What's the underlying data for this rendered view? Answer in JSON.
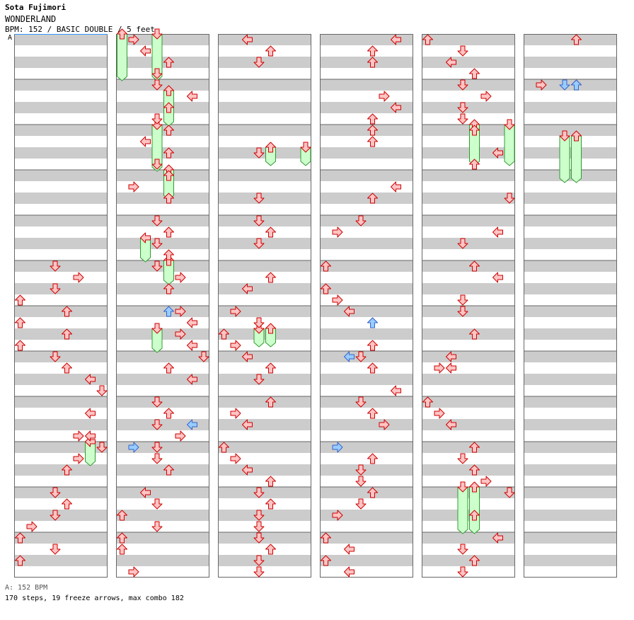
{
  "header": {
    "artist": "Sota Fujimori",
    "title": "WONDERLAND",
    "info": "BPM: 152 / BASIC DOUBLE / 5 feet"
  },
  "bpm_marker": {
    "label": "A"
  },
  "footer": {
    "bpm": "A: 152 BPM",
    "stats": "170 steps, 19 freeze arrows, max combo 182"
  },
  "colors": {
    "stripe_dark": "#cccccc",
    "stripe_light": "#ffffff",
    "tap": "#ffc4c4",
    "tap_stroke": "#cc0000",
    "tap_alt": "#99ccff",
    "tap_alt_stroke": "#3366cc",
    "freeze": "#ccffcc",
    "freeze_stroke": "#339933"
  },
  "chart_data": {
    "type": "step-chart",
    "bpm": 152,
    "difficulty": "BASIC DOUBLE",
    "feet": 5,
    "lanes": [
      "L",
      "D",
      "U",
      "R",
      "L",
      "D",
      "U",
      "R"
    ],
    "measures_per_column": 12,
    "columns": 6,
    "total_steps": 170,
    "freeze_arrows": 19,
    "max_combo": 182,
    "notes": [
      {
        "m": 5,
        "b": 0,
        "l": 3
      },
      {
        "m": 5,
        "b": 1,
        "l": 5
      },
      {
        "m": 5,
        "b": 2,
        "l": 3
      },
      {
        "m": 5,
        "b": 3,
        "l": 0
      },
      {
        "m": 6,
        "b": 0,
        "l": 4
      },
      {
        "m": 6,
        "b": 1,
        "l": 0
      },
      {
        "m": 6,
        "b": 2,
        "l": 4
      },
      {
        "m": 6,
        "b": 3,
        "l": 0
      },
      {
        "m": 7,
        "b": 0,
        "l": 3
      },
      {
        "m": 7,
        "b": 1,
        "l": 4
      },
      {
        "m": 7,
        "b": 2,
        "l": 6
      },
      {
        "m": 7,
        "b": 3,
        "l": 7
      },
      {
        "m": 8,
        "b": 1,
        "l": 6
      },
      {
        "m": 8,
        "b": 3,
        "l": 5
      },
      {
        "m": 8,
        "b": 3,
        "l": 6
      },
      {
        "m": 9,
        "b": 0,
        "l": 7
      },
      {
        "m": 9,
        "b": 1,
        "l": 5
      },
      {
        "m": 9,
        "b": 2,
        "l": 4
      },
      {
        "m": 10,
        "b": 0,
        "l": 3
      },
      {
        "m": 10,
        "b": 1,
        "l": 4
      },
      {
        "m": 10,
        "b": 2,
        "l": 3
      },
      {
        "m": 10,
        "b": 3,
        "l": 1
      },
      {
        "m": 11,
        "b": 0,
        "l": 0
      },
      {
        "m": 11,
        "b": 1,
        "l": 3
      },
      {
        "m": 11,
        "b": 2,
        "l": 0
      },
      {
        "m": 12,
        "b": 0,
        "l": 1
      },
      {
        "m": 12,
        "b": 1,
        "l": 2
      },
      {
        "m": 12,
        "b": 2,
        "l": 4
      },
      {
        "m": 12,
        "b": 3,
        "l": 3
      },
      {
        "m": 13,
        "b": 0,
        "l": 3
      },
      {
        "m": 13,
        "b": 1,
        "l": 6
      },
      {
        "m": 13,
        "b": 2,
        "l": 4
      },
      {
        "m": 13,
        "b": 3,
        "l": 3
      },
      {
        "m": 14,
        "b": 0,
        "l": 4
      },
      {
        "m": 14,
        "b": 1,
        "l": 2
      },
      {
        "m": 14,
        "b": 2,
        "l": 4
      },
      {
        "m": 14,
        "b": 3,
        "l": 3
      },
      {
        "m": 15,
        "b": 0,
        "l": 4
      },
      {
        "m": 15,
        "b": 1,
        "l": 1
      },
      {
        "m": 15,
        "b": 2,
        "l": 4
      },
      {
        "m": 16,
        "b": 0,
        "l": 3
      },
      {
        "m": 16,
        "b": 1,
        "l": 4
      },
      {
        "m": 16,
        "b": 2,
        "l": 3
      },
      {
        "m": 16,
        "b": 3,
        "l": 4
      },
      {
        "m": 17,
        "b": 0,
        "l": 3
      },
      {
        "m": 17,
        "b": 1,
        "l": 5
      },
      {
        "m": 17,
        "b": 2,
        "l": 4
      },
      {
        "m": 18,
        "b": 0,
        "l": 5
      },
      {
        "m": 18,
        "b": 1,
        "l": 6
      },
      {
        "m": 18,
        "b": 2,
        "l": 5
      },
      {
        "m": 18,
        "b": 3,
        "l": 6
      },
      {
        "m": 19,
        "b": 0,
        "l": 7
      },
      {
        "m": 19,
        "b": 1,
        "l": 4
      },
      {
        "m": 19,
        "b": 2,
        "l": 6
      },
      {
        "m": 20,
        "b": 0,
        "l": 3
      },
      {
        "m": 20,
        "b": 1,
        "l": 4
      },
      {
        "m": 20,
        "b": 2,
        "l": 3
      },
      {
        "m": 20,
        "b": 3,
        "l": 5
      },
      {
        "m": 21,
        "b": 0,
        "l": 3
      },
      {
        "m": 21,
        "b": 1,
        "l": 3
      },
      {
        "m": 21,
        "b": 2,
        "l": 4
      },
      {
        "m": 22,
        "b": 0,
        "l": 2
      },
      {
        "m": 22,
        "b": 1,
        "l": 3
      },
      {
        "m": 22,
        "b": 2,
        "l": 0
      },
      {
        "m": 22,
        "b": 3,
        "l": 3
      },
      {
        "m": 23,
        "b": 0,
        "l": 0
      },
      {
        "m": 23,
        "b": 1,
        "l": 0
      },
      {
        "m": 23,
        "b": 3,
        "l": 1
      },
      {
        "m": 24,
        "b": 0,
        "l": 2
      },
      {
        "m": 24,
        "b": 1,
        "l": 4
      },
      {
        "m": 24,
        "b": 2,
        "l": 3
      },
      {
        "m": 26,
        "b": 2,
        "l": 3
      },
      {
        "m": 27,
        "b": 2,
        "l": 3
      },
      {
        "m": 28,
        "b": 0,
        "l": 3
      },
      {
        "m": 28,
        "b": 1,
        "l": 4
      },
      {
        "m": 28,
        "b": 2,
        "l": 3
      },
      {
        "m": 29,
        "b": 1,
        "l": 4
      },
      {
        "m": 29,
        "b": 2,
        "l": 2
      },
      {
        "m": 30,
        "b": 0,
        "l": 1
      },
      {
        "m": 30,
        "b": 1,
        "l": 3
      },
      {
        "m": 30,
        "b": 2,
        "l": 0
      },
      {
        "m": 30,
        "b": 3,
        "l": 1
      },
      {
        "m": 31,
        "b": 0,
        "l": 2
      },
      {
        "m": 31,
        "b": 1,
        "l": 4
      },
      {
        "m": 31,
        "b": 2,
        "l": 3
      },
      {
        "m": 32,
        "b": 0,
        "l": 4
      },
      {
        "m": 32,
        "b": 1,
        "l": 1
      },
      {
        "m": 32,
        "b": 2,
        "l": 2
      },
      {
        "m": 33,
        "b": 0,
        "l": 0
      },
      {
        "m": 33,
        "b": 1,
        "l": 1
      },
      {
        "m": 33,
        "b": 2,
        "l": 2
      },
      {
        "m": 33,
        "b": 3,
        "l": 4
      },
      {
        "m": 34,
        "b": 0,
        "l": 3
      },
      {
        "m": 34,
        "b": 1,
        "l": 4
      },
      {
        "m": 34,
        "b": 2,
        "l": 3
      },
      {
        "m": 34,
        "b": 3,
        "l": 3
      },
      {
        "m": 35,
        "b": 0,
        "l": 3
      },
      {
        "m": 35,
        "b": 1,
        "l": 4
      },
      {
        "m": 35,
        "b": 2,
        "l": 3
      },
      {
        "m": 35,
        "b": 3,
        "l": 3
      },
      {
        "m": 36,
        "b": 0,
        "l": 6
      },
      {
        "m": 36,
        "b": 1,
        "l": 4
      },
      {
        "m": 36,
        "b": 2,
        "l": 4
      },
      {
        "m": 37,
        "b": 1,
        "l": 5
      },
      {
        "m": 37,
        "b": 2,
        "l": 6
      },
      {
        "m": 37,
        "b": 3,
        "l": 4
      },
      {
        "m": 38,
        "b": 0,
        "l": 4
      },
      {
        "m": 38,
        "b": 1,
        "l": 4
      },
      {
        "m": 39,
        "b": 1,
        "l": 6
      },
      {
        "m": 39,
        "b": 2,
        "l": 4
      },
      {
        "m": 40,
        "b": 0,
        "l": 3
      },
      {
        "m": 40,
        "b": 1,
        "l": 1
      },
      {
        "m": 41,
        "b": 0,
        "l": 0
      },
      {
        "m": 41,
        "b": 2,
        "l": 0
      },
      {
        "m": 41,
        "b": 3,
        "l": 1
      },
      {
        "m": 42,
        "b": 0,
        "l": 2
      },
      {
        "m": 42,
        "b": 1,
        "l": 4
      },
      {
        "m": 42,
        "b": 3,
        "l": 4
      },
      {
        "m": 43,
        "b": 0,
        "l": 3
      },
      {
        "m": 43,
        "b": 1,
        "l": 4
      },
      {
        "m": 43,
        "b": 3,
        "l": 6
      },
      {
        "m": 44,
        "b": 0,
        "l": 3
      },
      {
        "m": 44,
        "b": 1,
        "l": 4
      },
      {
        "m": 44,
        "b": 2,
        "l": 5
      },
      {
        "m": 45,
        "b": 1,
        "l": 4
      },
      {
        "m": 45,
        "b": 2,
        "l": 3
      },
      {
        "m": 45,
        "b": 3,
        "l": 3
      },
      {
        "m": 46,
        "b": 0,
        "l": 4
      },
      {
        "m": 46,
        "b": 1,
        "l": 3
      },
      {
        "m": 46,
        "b": 2,
        "l": 1
      },
      {
        "m": 47,
        "b": 0,
        "l": 0
      },
      {
        "m": 47,
        "b": 1,
        "l": 2
      },
      {
        "m": 47,
        "b": 2,
        "l": 0
      },
      {
        "m": 47,
        "b": 3,
        "l": 2
      },
      {
        "m": 48,
        "b": 0,
        "l": 0
      },
      {
        "m": 48,
        "b": 1,
        "l": 3
      },
      {
        "m": 48,
        "b": 2,
        "l": 2
      },
      {
        "m": 48,
        "b": 3,
        "l": 4
      },
      {
        "m": 49,
        "b": 0,
        "l": 3
      },
      {
        "m": 49,
        "b": 1,
        "l": 5
      },
      {
        "m": 49,
        "b": 2,
        "l": 3
      },
      {
        "m": 49,
        "b": 3,
        "l": 3
      },
      {
        "m": 50,
        "b": 0,
        "l": 4
      },
      {
        "m": 50,
        "b": 2,
        "l": 6
      },
      {
        "m": 50,
        "b": 3,
        "l": 4
      },
      {
        "m": 51,
        "b": 2,
        "l": 7
      },
      {
        "m": 52,
        "b": 1,
        "l": 6
      },
      {
        "m": 52,
        "b": 2,
        "l": 3
      },
      {
        "m": 53,
        "b": 0,
        "l": 4
      },
      {
        "m": 53,
        "b": 1,
        "l": 6
      },
      {
        "m": 53,
        "b": 3,
        "l": 3
      },
      {
        "m": 54,
        "b": 0,
        "l": 3
      },
      {
        "m": 54,
        "b": 2,
        "l": 4
      },
      {
        "m": 55,
        "b": 0,
        "l": 2
      },
      {
        "m": 55,
        "b": 1,
        "l": 1
      },
      {
        "m": 55,
        "b": 1,
        "l": 2
      },
      {
        "m": 56,
        "b": 0,
        "l": 0
      },
      {
        "m": 56,
        "b": 1,
        "l": 1
      },
      {
        "m": 56,
        "b": 2,
        "l": 2
      },
      {
        "m": 57,
        "b": 0,
        "l": 4
      },
      {
        "m": 57,
        "b": 1,
        "l": 3
      },
      {
        "m": 57,
        "b": 2,
        "l": 4
      },
      {
        "m": 57,
        "b": 3,
        "l": 5
      },
      {
        "m": 58,
        "b": 0,
        "l": 7
      },
      {
        "m": 58,
        "b": 2,
        "l": 4
      },
      {
        "m": 59,
        "b": 0,
        "l": 6
      },
      {
        "m": 59,
        "b": 1,
        "l": 3
      },
      {
        "m": 59,
        "b": 2,
        "l": 4
      },
      {
        "m": 59,
        "b": 3,
        "l": 3
      },
      {
        "m": 60,
        "b": 0,
        "l": 4
      },
      {
        "m": 61,
        "b": 0,
        "l": 1
      },
      {
        "m": 61,
        "b": 0,
        "l": 4
      }
    ],
    "freezes": [
      {
        "m": 9,
        "b": 0,
        "l": 6,
        "len": 2
      },
      {
        "m": 12,
        "b": 0,
        "l": 0,
        "len": 4
      },
      {
        "m": 12,
        "b": 0,
        "l": 3,
        "len": 4
      },
      {
        "m": 13,
        "b": 1,
        "l": 4,
        "len": 3
      },
      {
        "m": 14,
        "b": 0,
        "l": 3,
        "len": 4
      },
      {
        "m": 15,
        "b": 0,
        "l": 4,
        "len": 2.5
      },
      {
        "m": 16,
        "b": 2,
        "l": 2,
        "len": 2
      },
      {
        "m": 17,
        "b": 0,
        "l": 4,
        "len": 2
      },
      {
        "m": 18,
        "b": 2,
        "l": 3,
        "len": 2
      },
      {
        "m": 26,
        "b": 2,
        "l": 7,
        "len": 1.5
      },
      {
        "m": 26,
        "b": 2,
        "l": 4,
        "len": 1.5
      },
      {
        "m": 30,
        "b": 2,
        "l": 3,
        "len": 1.5
      },
      {
        "m": 30,
        "b": 2,
        "l": 4,
        "len": 1.5
      },
      {
        "m": 50,
        "b": 0,
        "l": 4,
        "len": 3.5
      },
      {
        "m": 50,
        "b": 0,
        "l": 7,
        "len": 3.5
      },
      {
        "m": 58,
        "b": 0,
        "l": 3,
        "len": 4
      },
      {
        "m": 58,
        "b": 0,
        "l": 4,
        "len": 4
      },
      {
        "m": 62,
        "b": 1,
        "l": 3,
        "len": 4
      },
      {
        "m": 62,
        "b": 1,
        "l": 4,
        "len": 4
      }
    ],
    "blue_notes": [
      {
        "m": 18,
        "b": 0.5,
        "l": 4
      },
      {
        "m": 20,
        "b": 2.5,
        "l": 6
      },
      {
        "m": 21,
        "b": 0.5,
        "l": 1
      },
      {
        "m": 42,
        "b": 1.5,
        "l": 4
      },
      {
        "m": 43,
        "b": 0.5,
        "l": 2
      },
      {
        "m": 45,
        "b": 0.5,
        "l": 1
      },
      {
        "m": 61,
        "b": 0.5,
        "l": 3
      },
      {
        "m": 61,
        "b": 0.5,
        "l": 4
      }
    ]
  }
}
